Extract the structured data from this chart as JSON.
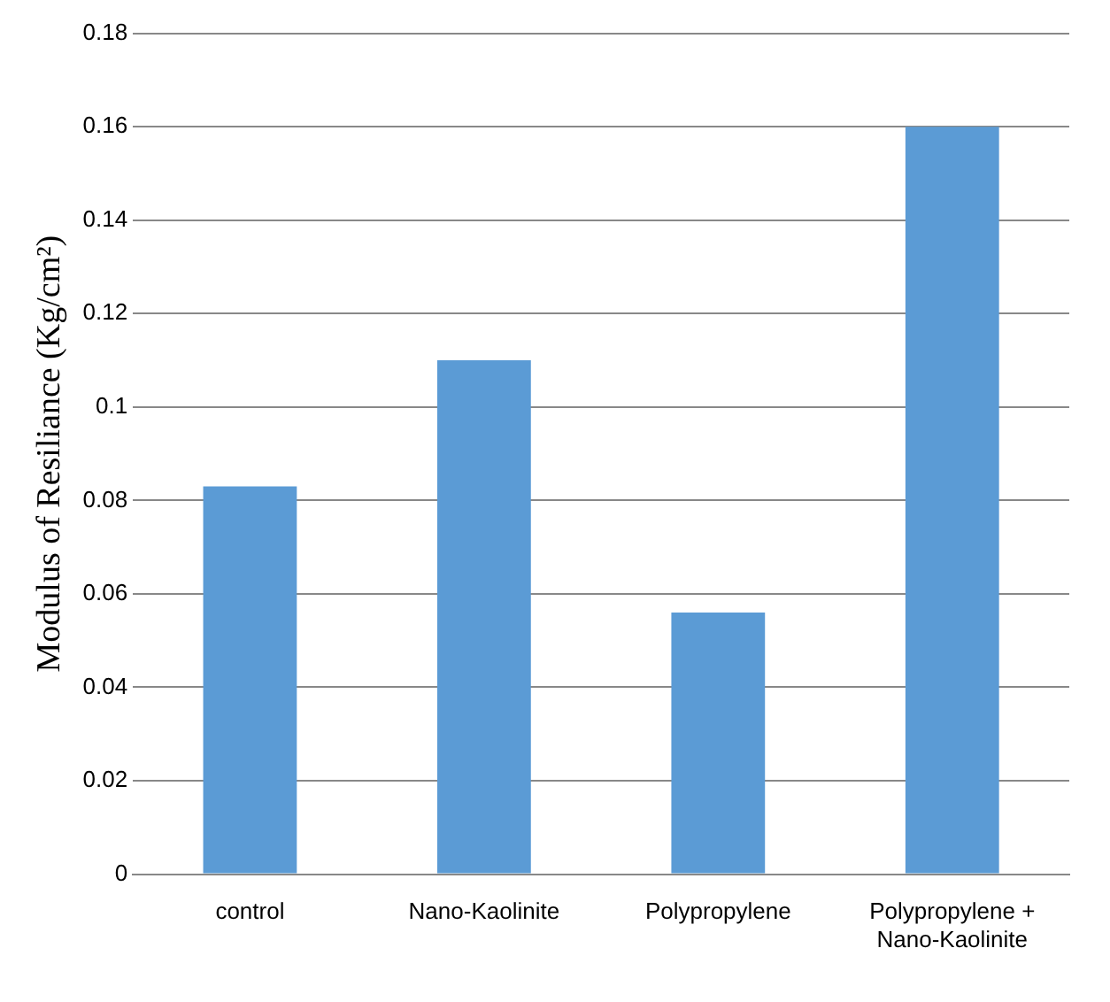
{
  "chart_data": {
    "type": "bar",
    "ylabel": "Modulus of Resiliance (Kg/cm²)",
    "categories": [
      "control",
      "Nano-Kaolinite",
      "Polypropylene",
      "Polypropylene + Nano-Kaolinite"
    ],
    "values": [
      0.083,
      0.11,
      0.056,
      0.16
    ],
    "color": "#5b9bd5",
    "ylim": [
      0,
      0.18
    ],
    "yticks": [
      0,
      0.02,
      0.04,
      0.06,
      0.08,
      0.1,
      0.12,
      0.14,
      0.16,
      0.18
    ],
    "grid": "y",
    "legend": false
  }
}
